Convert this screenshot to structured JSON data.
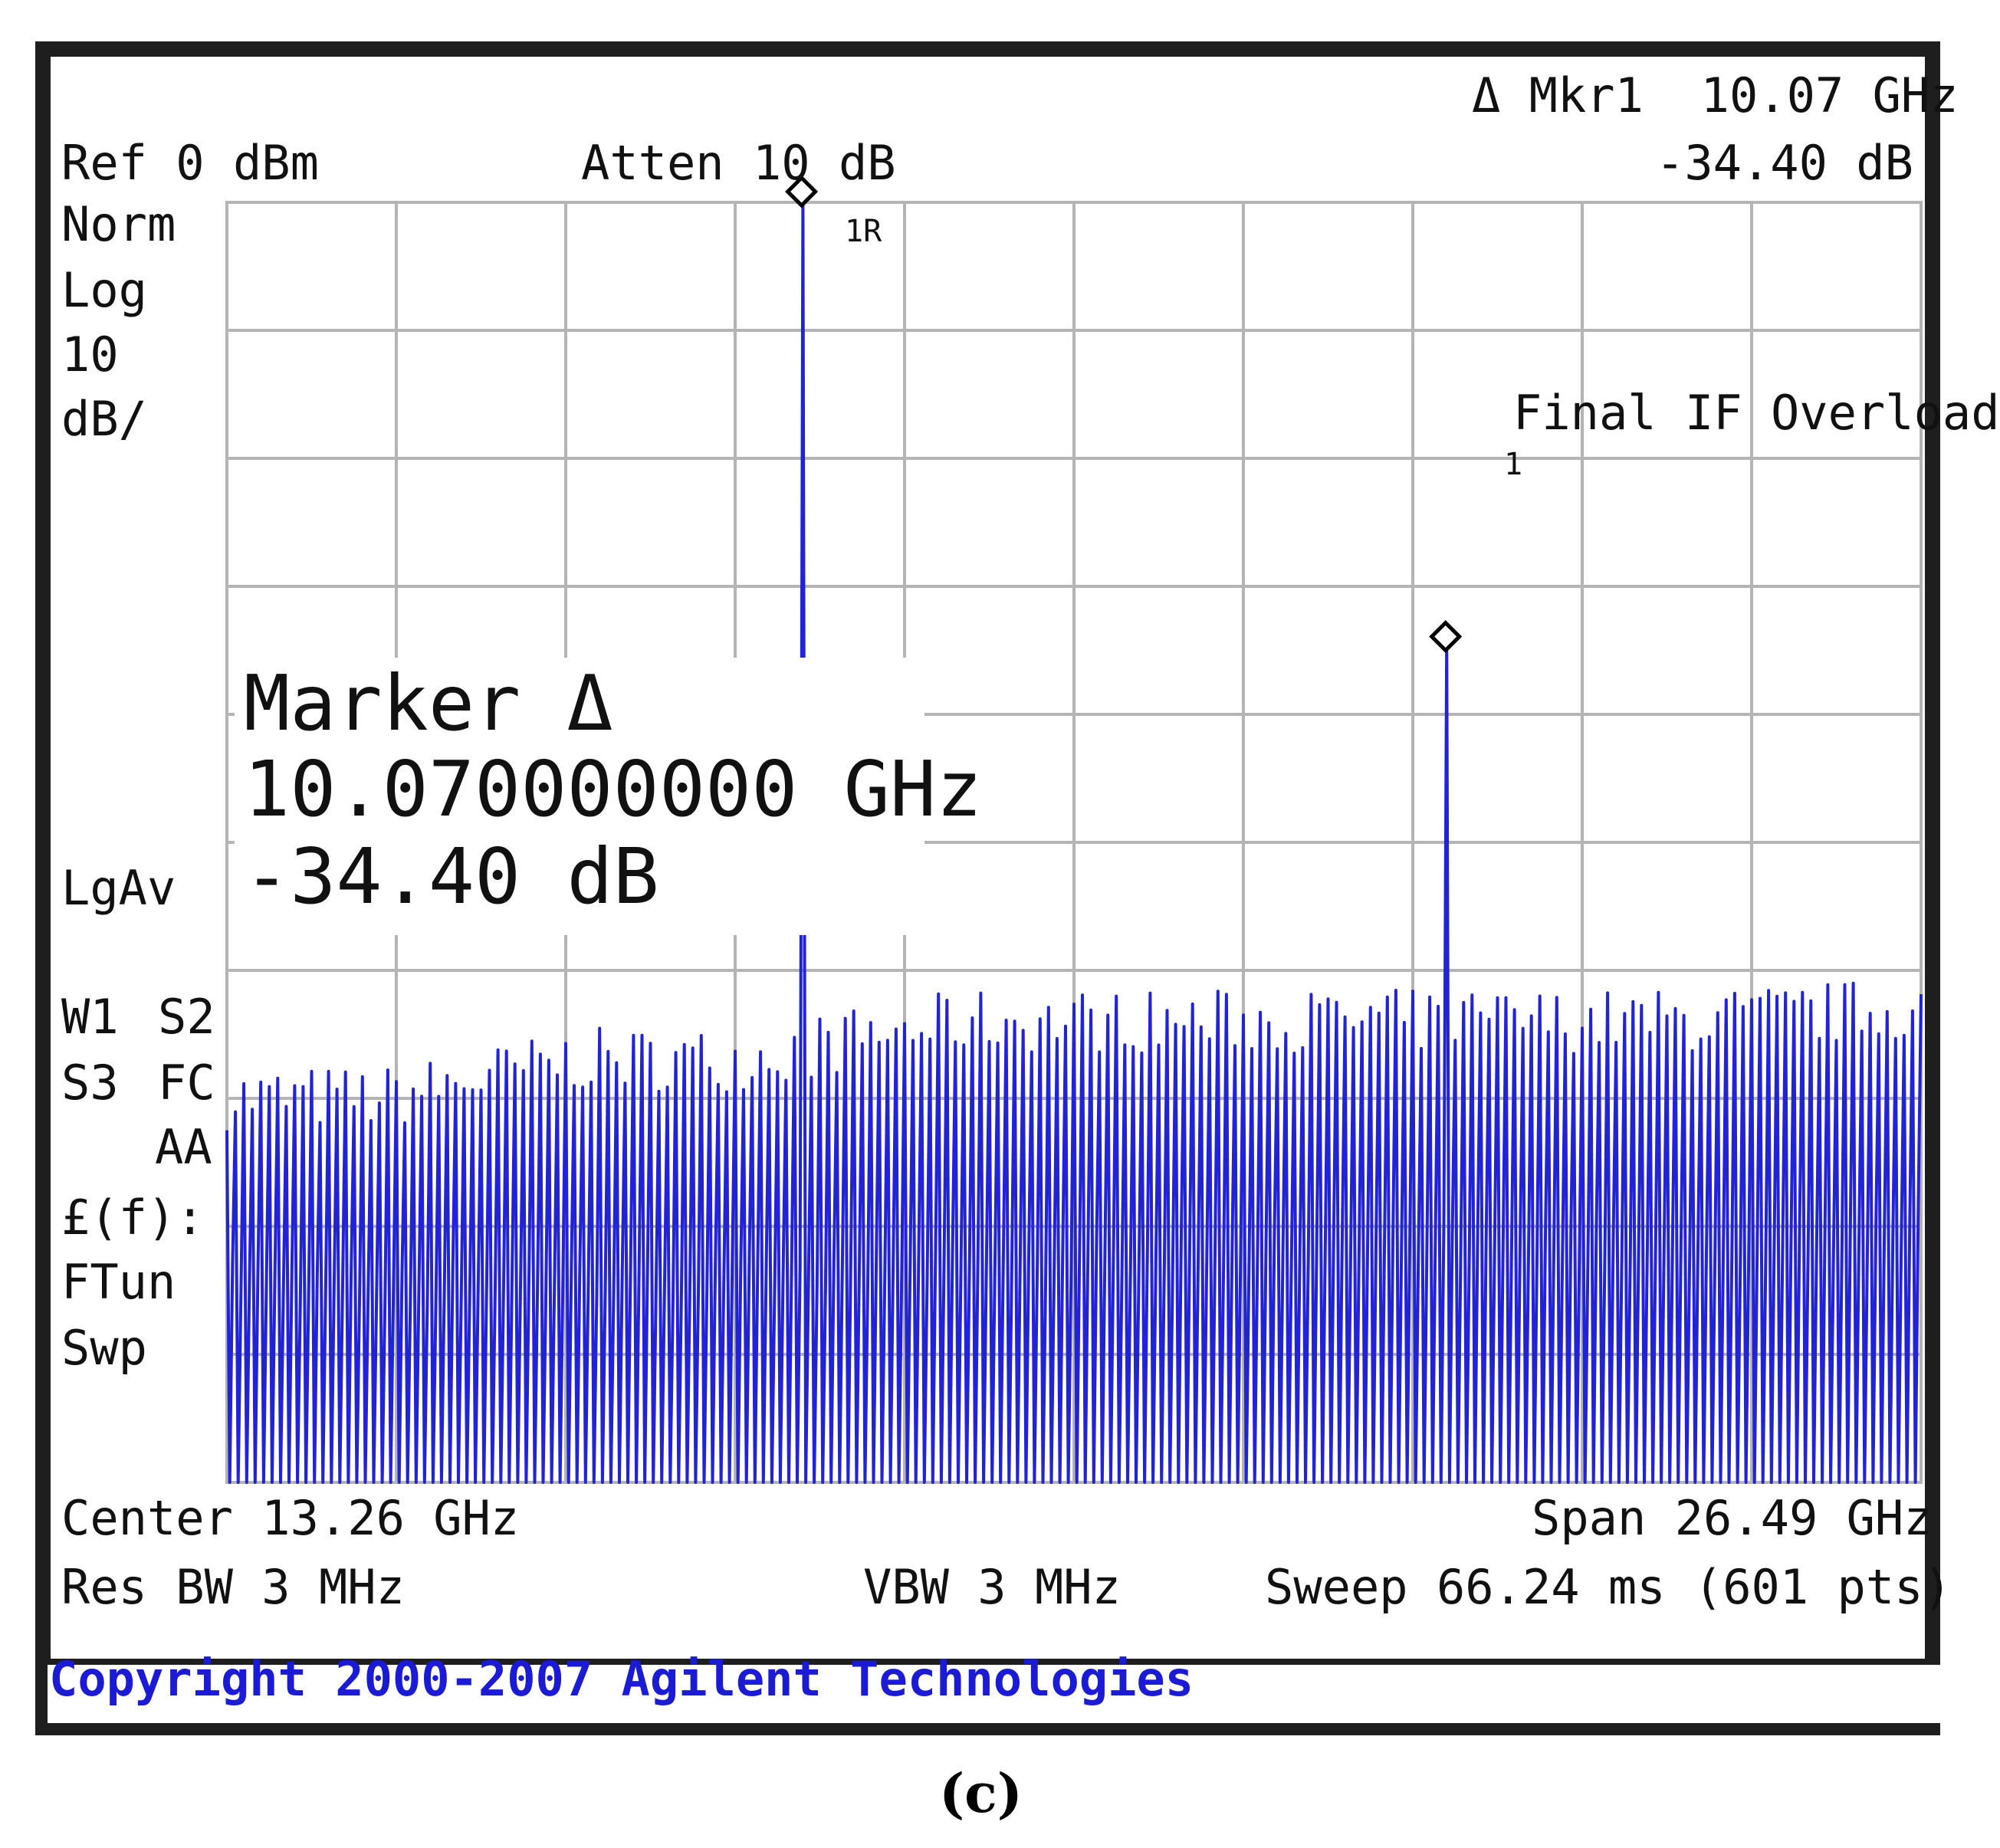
{
  "header": {
    "ref": "Ref 0 dBm",
    "atten": "Atten 10 dB",
    "marker_line1": "Δ Mkr1  10.07 GHz",
    "marker_line2": "-34.40 dB"
  },
  "side_labels": {
    "norm": "Norm",
    "log": "Log",
    "scale_value": "10",
    "scale_unit": "dB/",
    "lgav": "LgAv",
    "w1": "W1",
    "s2": "S2",
    "s3": "S3",
    "fc": "FC",
    "aa": "AA",
    "lf": "£(f):",
    "ftun": "FTun",
    "swp": "Swp"
  },
  "marker_box": {
    "title": "Marker Δ",
    "freq": "10.070000000 GHz",
    "level": "-34.40 dB"
  },
  "annotations": {
    "overload": "Final IF Overload",
    "ref_marker_label": "1R",
    "delta_marker_label": "1"
  },
  "footer": {
    "center": "Center 13.26 GHz",
    "span": "Span 26.49 GHz",
    "res_bw": "Res BW 3 MHz",
    "vbw": "VBW 3 MHz",
    "sweep": "Sweep 66.24 ms (601 pts)"
  },
  "status_bar": {
    "copyright": "Copyright 2000-2007 Agilent Technologies"
  },
  "caption": "(c)",
  "colors": {
    "trace": "#2323d6",
    "grid": "#b4b4b4",
    "frame": "#1e1e1e",
    "copyright": "#1b1bd6"
  },
  "chart_data": {
    "type": "line",
    "x_unit": "GHz",
    "y_unit": "dBm",
    "xlim": [
      0.015,
      26.505
    ],
    "ylim": [
      -100,
      0
    ],
    "grid": true,
    "x_divisions": 10,
    "y_divisions": 10,
    "points": 601,
    "noise_floor_envelope": {
      "x": [
        0.1,
        2.5,
        5.5,
        8.0,
        11.5,
        15.0,
        20.0,
        23.0,
        26.4
      ],
      "top": [
        -70,
        -70,
        -67,
        -67,
        -64,
        -64,
        -64,
        -64,
        -63
      ],
      "mid": [
        -84,
        -85,
        -84,
        -84,
        -83,
        -82,
        -81,
        -82,
        -80
      ]
    },
    "markers": [
      {
        "label": "1R",
        "x": 9.0,
        "y": 0
      },
      {
        "label": "1",
        "x": 19.07,
        "y": -34.4
      }
    ],
    "delta": {
      "freq_ghz": 10.07,
      "level_db": -34.4
    }
  }
}
